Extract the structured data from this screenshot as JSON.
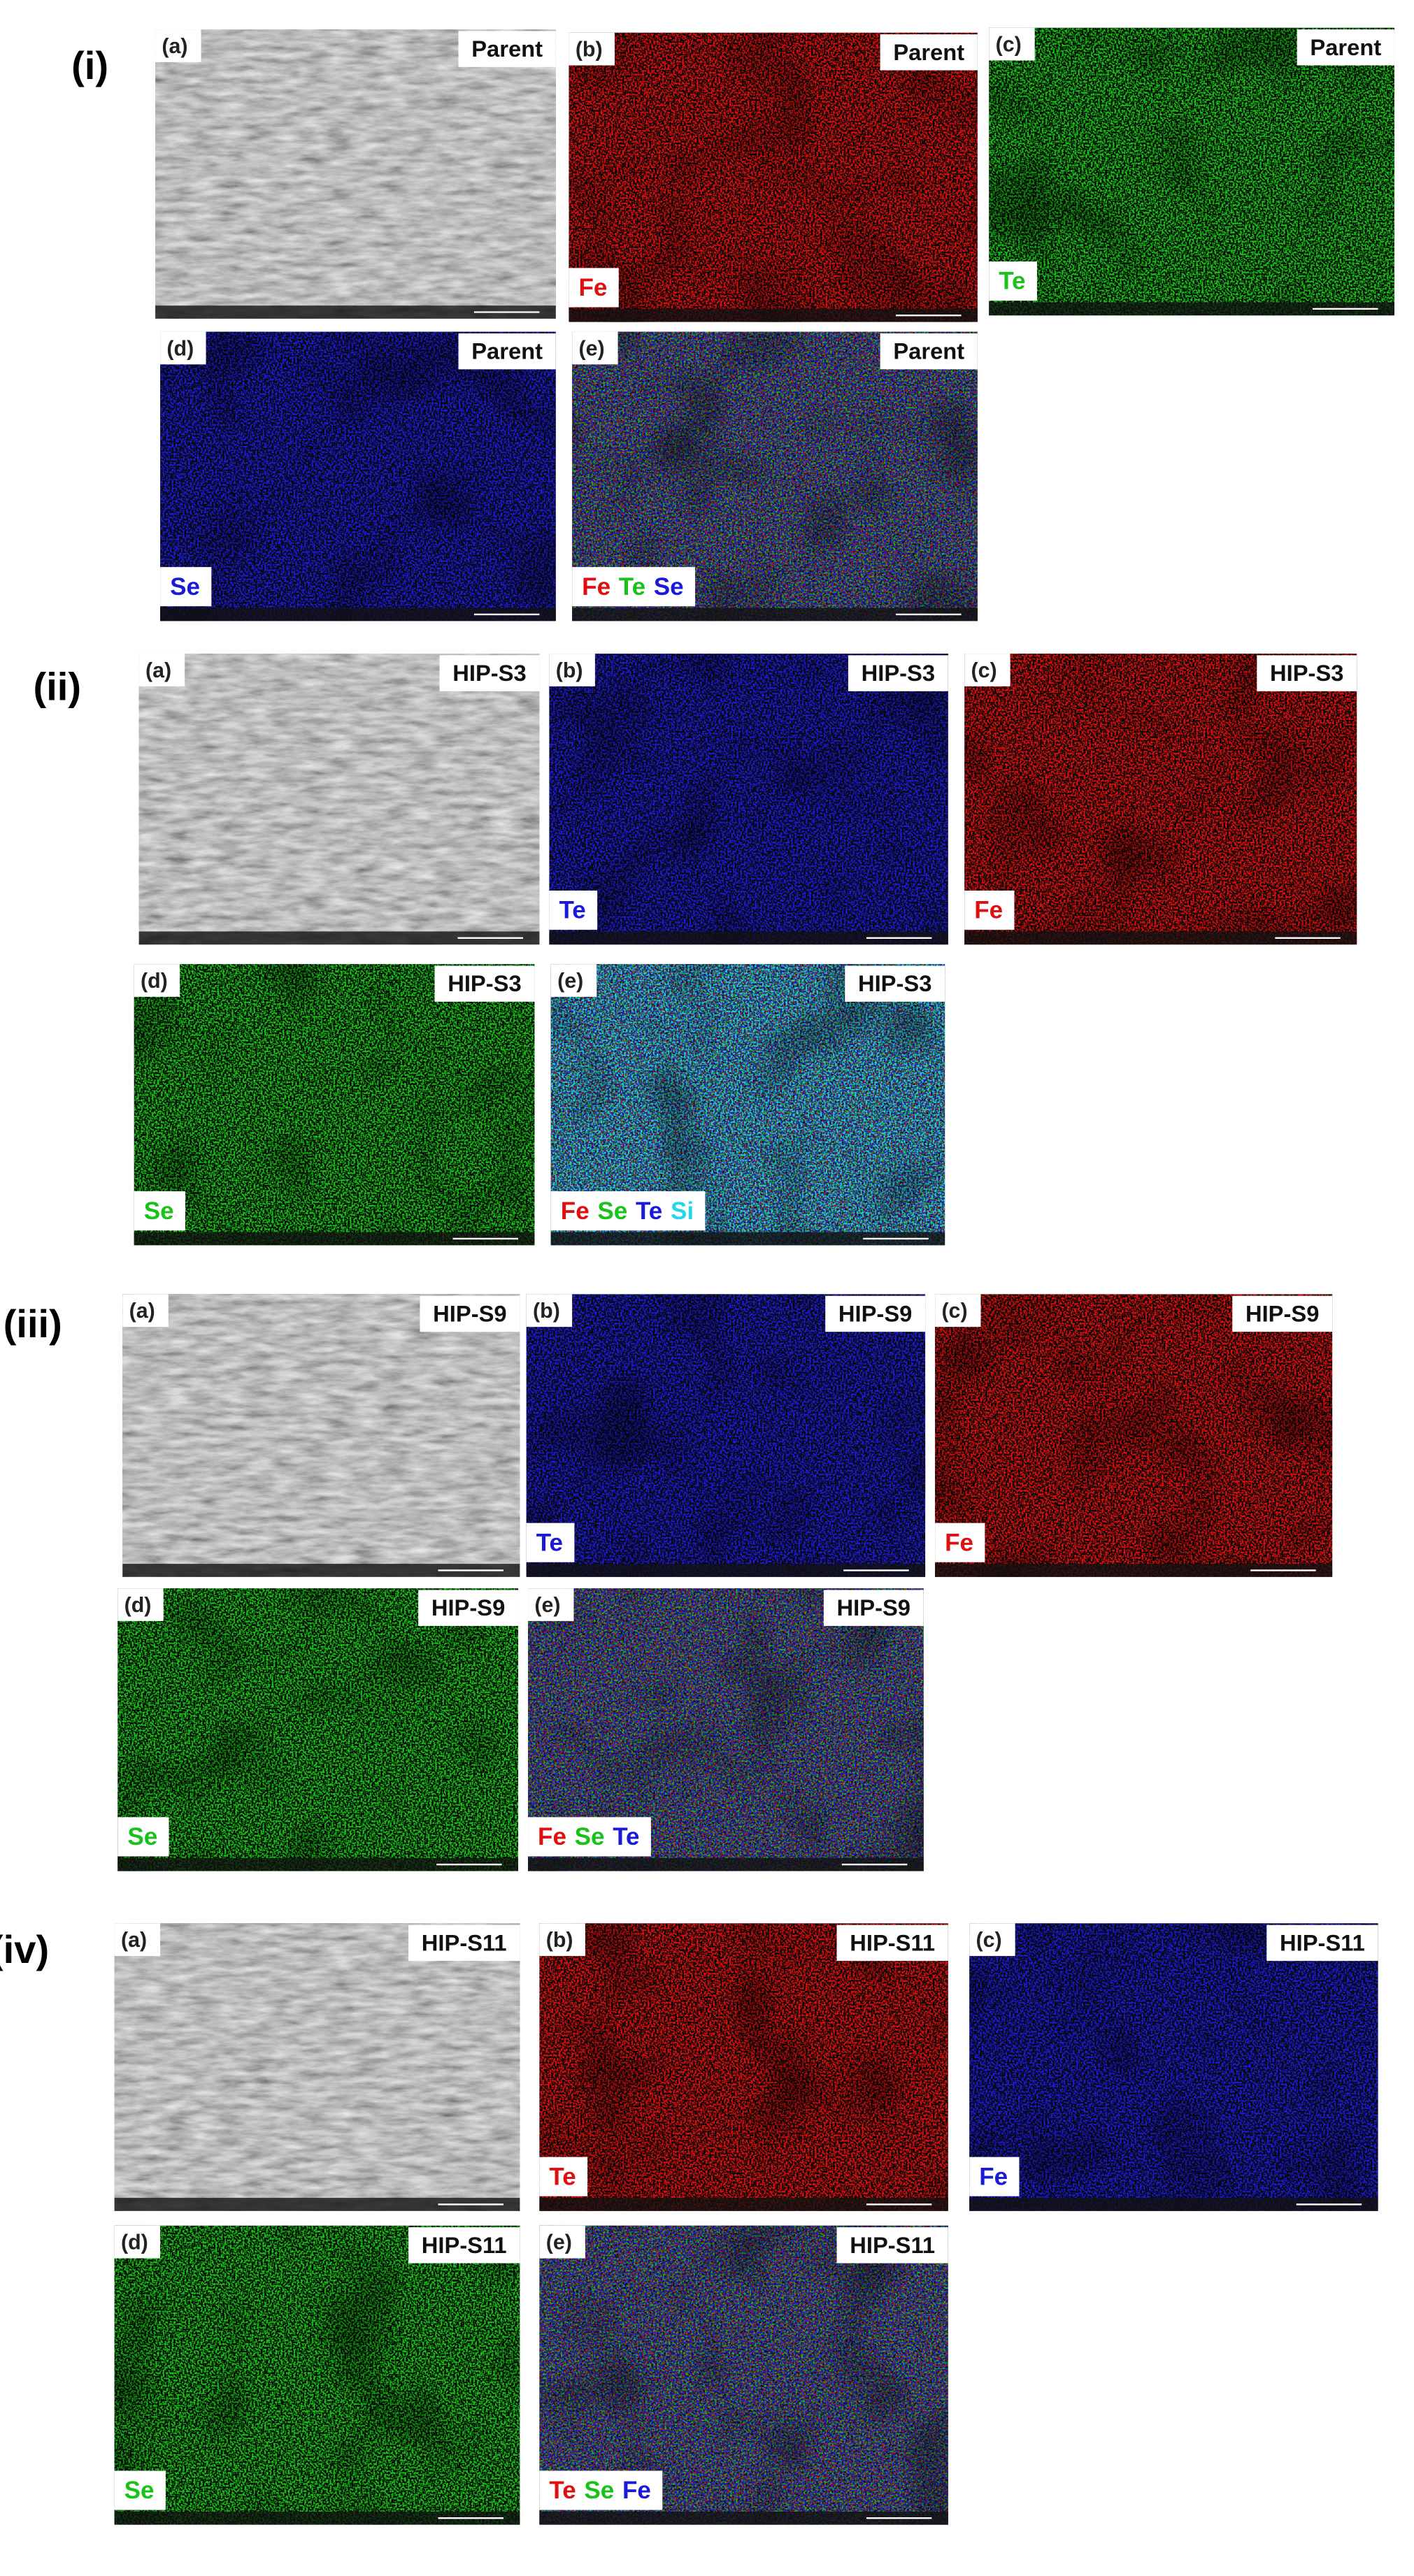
{
  "groups": [
    {
      "label": "(i)",
      "panels": [
        {
          "letter": "(a)",
          "sample": "Parent"
        },
        {
          "letter": "(b)",
          "sample": "Parent",
          "elements": [
            {
              "symbol": "Fe",
              "color": "#e01010"
            }
          ]
        },
        {
          "letter": "(c)",
          "sample": "Parent",
          "elements": [
            {
              "symbol": "Te",
              "color": "#19c219"
            }
          ]
        },
        {
          "letter": "(d)",
          "sample": "Parent",
          "elements": [
            {
              "symbol": "Se",
              "color": "#1a1ad8"
            }
          ]
        },
        {
          "letter": "(e)",
          "sample": "Parent",
          "elements": [
            {
              "symbol": "Fe",
              "color": "#e01010"
            },
            {
              "symbol": "Te",
              "color": "#19c219"
            },
            {
              "symbol": "Se",
              "color": "#1a1ad8"
            }
          ]
        }
      ]
    },
    {
      "label": "(ii)",
      "panels": [
        {
          "letter": "(a)",
          "sample": "HIP-S3"
        },
        {
          "letter": "(b)",
          "sample": "HIP-S3",
          "elements": [
            {
              "symbol": "Te",
              "color": "#1a1ad8"
            }
          ]
        },
        {
          "letter": "(c)",
          "sample": "HIP-S3",
          "elements": [
            {
              "symbol": "Fe",
              "color": "#e01010"
            }
          ]
        },
        {
          "letter": "(d)",
          "sample": "HIP-S3",
          "elements": [
            {
              "symbol": "Se",
              "color": "#19c219"
            }
          ]
        },
        {
          "letter": "(e)",
          "sample": "HIP-S3",
          "elements": [
            {
              "symbol": "Fe",
              "color": "#e01010"
            },
            {
              "symbol": "Se",
              "color": "#19c219"
            },
            {
              "symbol": "Te",
              "color": "#1a1ad8"
            },
            {
              "symbol": "Si",
              "color": "#22d8e8"
            }
          ]
        }
      ]
    },
    {
      "label": "(iii)",
      "panels": [
        {
          "letter": "(a)",
          "sample": "HIP-S9"
        },
        {
          "letter": "(b)",
          "sample": "HIP-S9",
          "elements": [
            {
              "symbol": "Te",
              "color": "#1a1ad8"
            }
          ]
        },
        {
          "letter": "(c)",
          "sample": "HIP-S9",
          "elements": [
            {
              "symbol": "Fe",
              "color": "#e01010"
            }
          ]
        },
        {
          "letter": "(d)",
          "sample": "HIP-S9",
          "elements": [
            {
              "symbol": "Se",
              "color": "#19c219"
            }
          ]
        },
        {
          "letter": "(e)",
          "sample": "HIP-S9",
          "elements": [
            {
              "symbol": "Fe",
              "color": "#e01010"
            },
            {
              "symbol": "Se",
              "color": "#19c219"
            },
            {
              "symbol": "Te",
              "color": "#1a1ad8"
            }
          ]
        }
      ]
    },
    {
      "label": "(iv)",
      "panels": [
        {
          "letter": "(a)",
          "sample": "HIP-S11"
        },
        {
          "letter": "(b)",
          "sample": "HIP-S11",
          "elements": [
            {
              "symbol": "Te",
              "color": "#e01010"
            }
          ]
        },
        {
          "letter": "(c)",
          "sample": "HIP-S11",
          "elements": [
            {
              "symbol": "Fe",
              "color": "#1a1ad8"
            }
          ]
        },
        {
          "letter": "(d)",
          "sample": "HIP-S11",
          "elements": [
            {
              "symbol": "Se",
              "color": "#19c219"
            }
          ]
        },
        {
          "letter": "(e)",
          "sample": "HIP-S11",
          "elements": [
            {
              "symbol": "Te",
              "color": "#e01010"
            },
            {
              "symbol": "Se",
              "color": "#19c219"
            },
            {
              "symbol": "Fe",
              "color": "#1a1ad8"
            }
          ]
        }
      ]
    }
  ]
}
